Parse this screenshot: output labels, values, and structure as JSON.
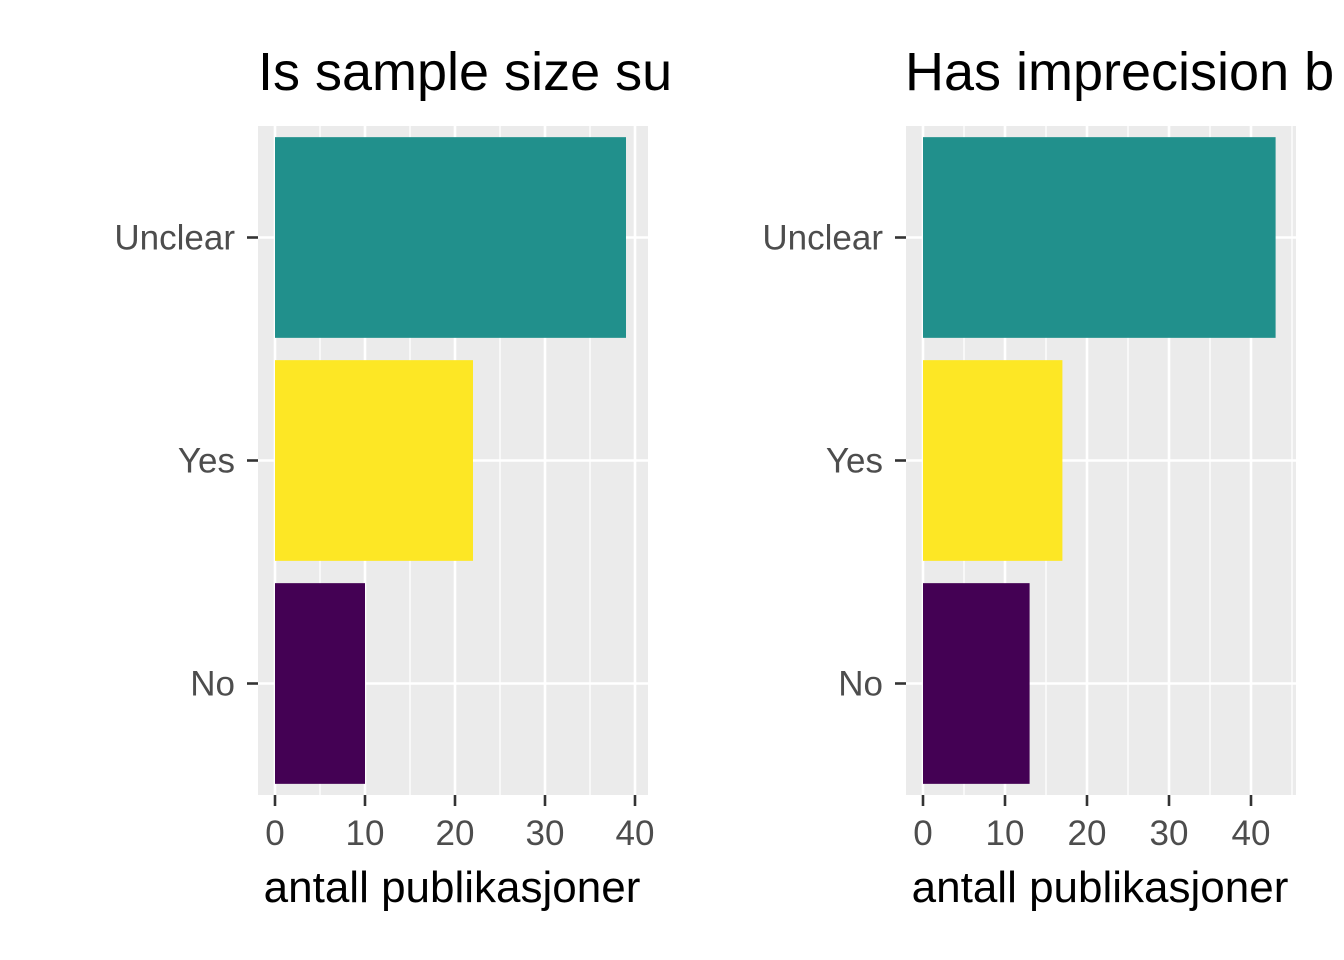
{
  "chart_data": [
    {
      "type": "bar",
      "orientation": "horizontal",
      "title": "Is sample size su",
      "categories": [
        "Unclear",
        "Yes",
        "No"
      ],
      "values": [
        39,
        22,
        10
      ],
      "colors": [
        "#21908C",
        "#FDE725",
        "#440154"
      ],
      "xlabel": "antall publikasjoner",
      "ylabel": "",
      "xlim": [
        0,
        41
      ],
      "xticks": [
        "0",
        "10",
        "20",
        "30",
        "40"
      ],
      "grid": true,
      "legend": "none"
    },
    {
      "type": "bar",
      "orientation": "horizontal",
      "title": "Has imprecision b",
      "categories": [
        "Unclear",
        "Yes",
        "No"
      ],
      "values": [
        43,
        17,
        13
      ],
      "colors": [
        "#21908C",
        "#FDE725",
        "#440154"
      ],
      "xlabel": "antall publikasjoner",
      "ylabel": "",
      "xlim": [
        0,
        45
      ],
      "xticks": [
        "0",
        "10",
        "20",
        "30",
        "40"
      ],
      "grid": true,
      "legend": "none"
    }
  ],
  "theme": {
    "panel_bg": "#EBEBEB",
    "grid_major": "#FFFFFF",
    "tick_color": "#333333"
  }
}
